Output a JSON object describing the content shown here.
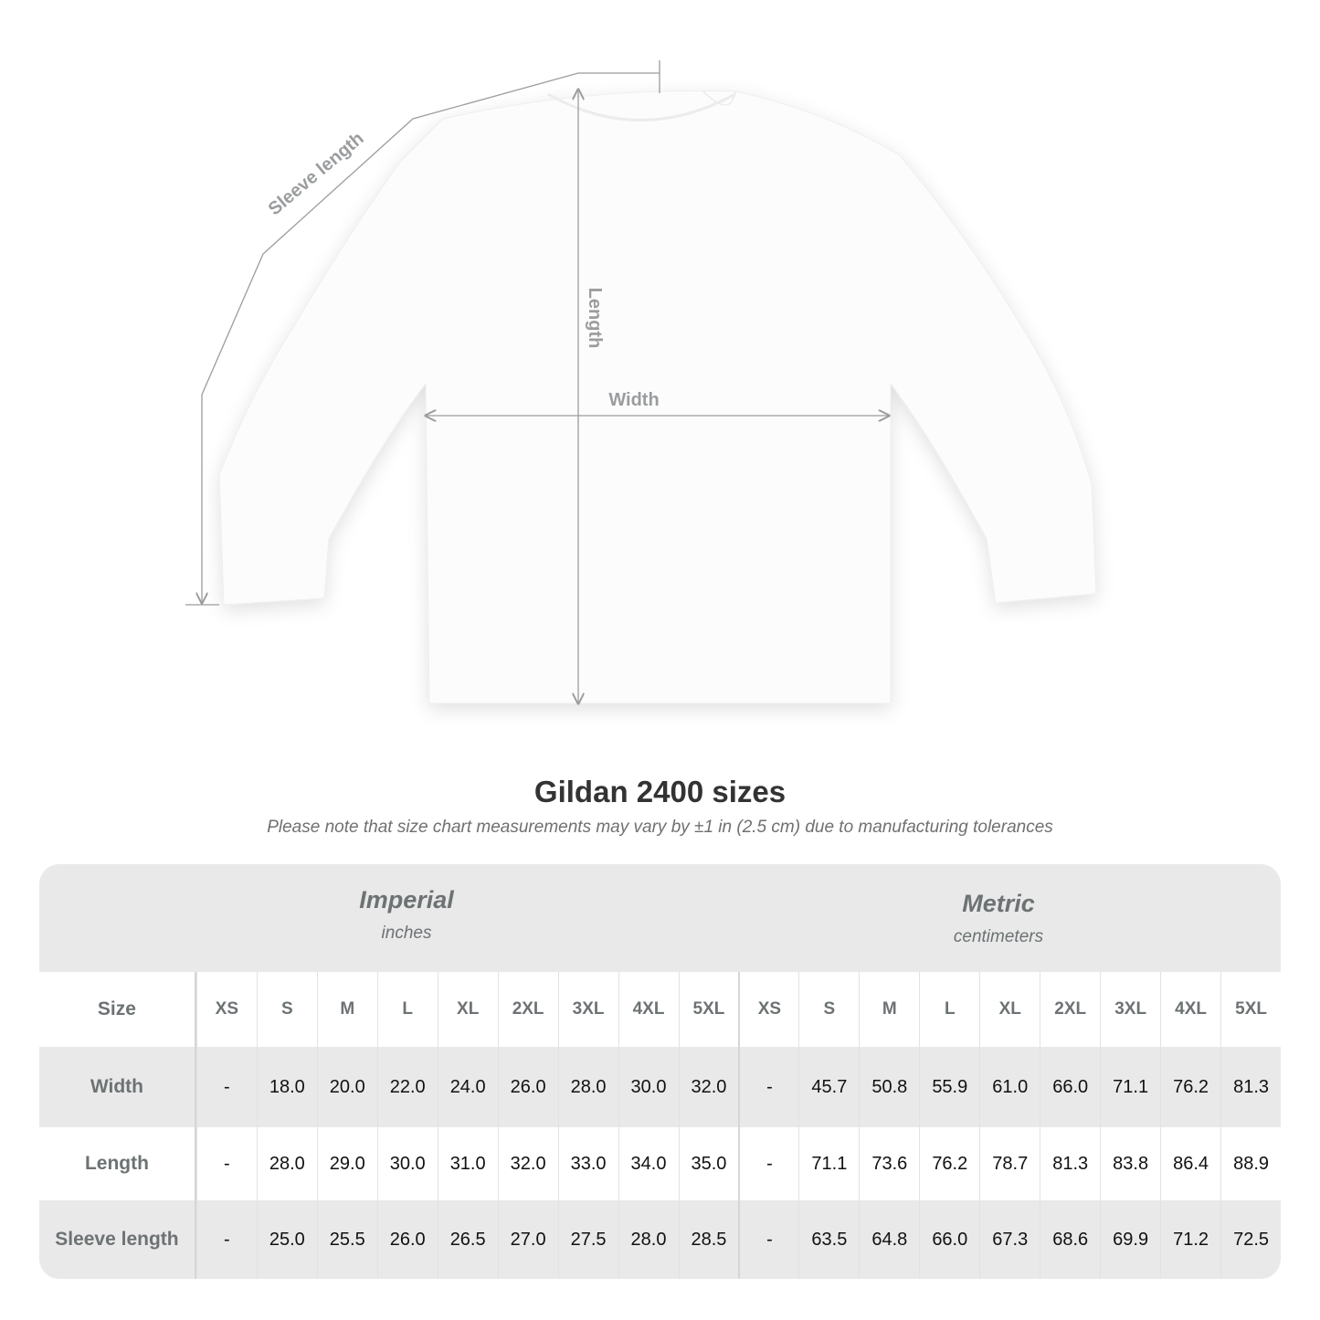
{
  "diagram": {
    "labels": {
      "sleeve": "Sleeve length",
      "length": "Length",
      "width": "Width"
    }
  },
  "title": "Gildan 2400 sizes",
  "note": "Please note that size chart measurements may vary by ±1 in (2.5 cm) due to manufacturing tolerances",
  "table": {
    "imperial": {
      "name": "Imperial",
      "unit": "inches"
    },
    "metric": {
      "name": "Metric",
      "unit": "centimeters"
    },
    "size_label": "Size",
    "sizes": [
      "XS",
      "S",
      "M",
      "L",
      "XL",
      "2XL",
      "3XL",
      "4XL",
      "5XL"
    ],
    "rows": [
      {
        "label": "Width",
        "imperial": [
          "-",
          "18.0",
          "20.0",
          "22.0",
          "24.0",
          "26.0",
          "28.0",
          "30.0",
          "32.0"
        ],
        "metric": [
          "-",
          "45.7",
          "50.8",
          "55.9",
          "61.0",
          "66.0",
          "71.1",
          "76.2",
          "81.3"
        ]
      },
      {
        "label": "Length",
        "imperial": [
          "-",
          "28.0",
          "29.0",
          "30.0",
          "31.0",
          "32.0",
          "33.0",
          "34.0",
          "35.0"
        ],
        "metric": [
          "-",
          "71.1",
          "73.6",
          "76.2",
          "78.7",
          "81.3",
          "83.8",
          "86.4",
          "88.9"
        ]
      },
      {
        "label": "Sleeve length",
        "imperial": [
          "-",
          "25.0",
          "25.5",
          "26.0",
          "26.5",
          "27.0",
          "27.5",
          "28.0",
          "28.5"
        ],
        "metric": [
          "-",
          "63.5",
          "64.8",
          "66.0",
          "67.3",
          "68.6",
          "69.9",
          "71.2",
          "72.5"
        ]
      }
    ]
  },
  "colors": {
    "band": "#e9e9e9",
    "header_text": "#6d7274",
    "measure_line": "#9a9c9e"
  }
}
